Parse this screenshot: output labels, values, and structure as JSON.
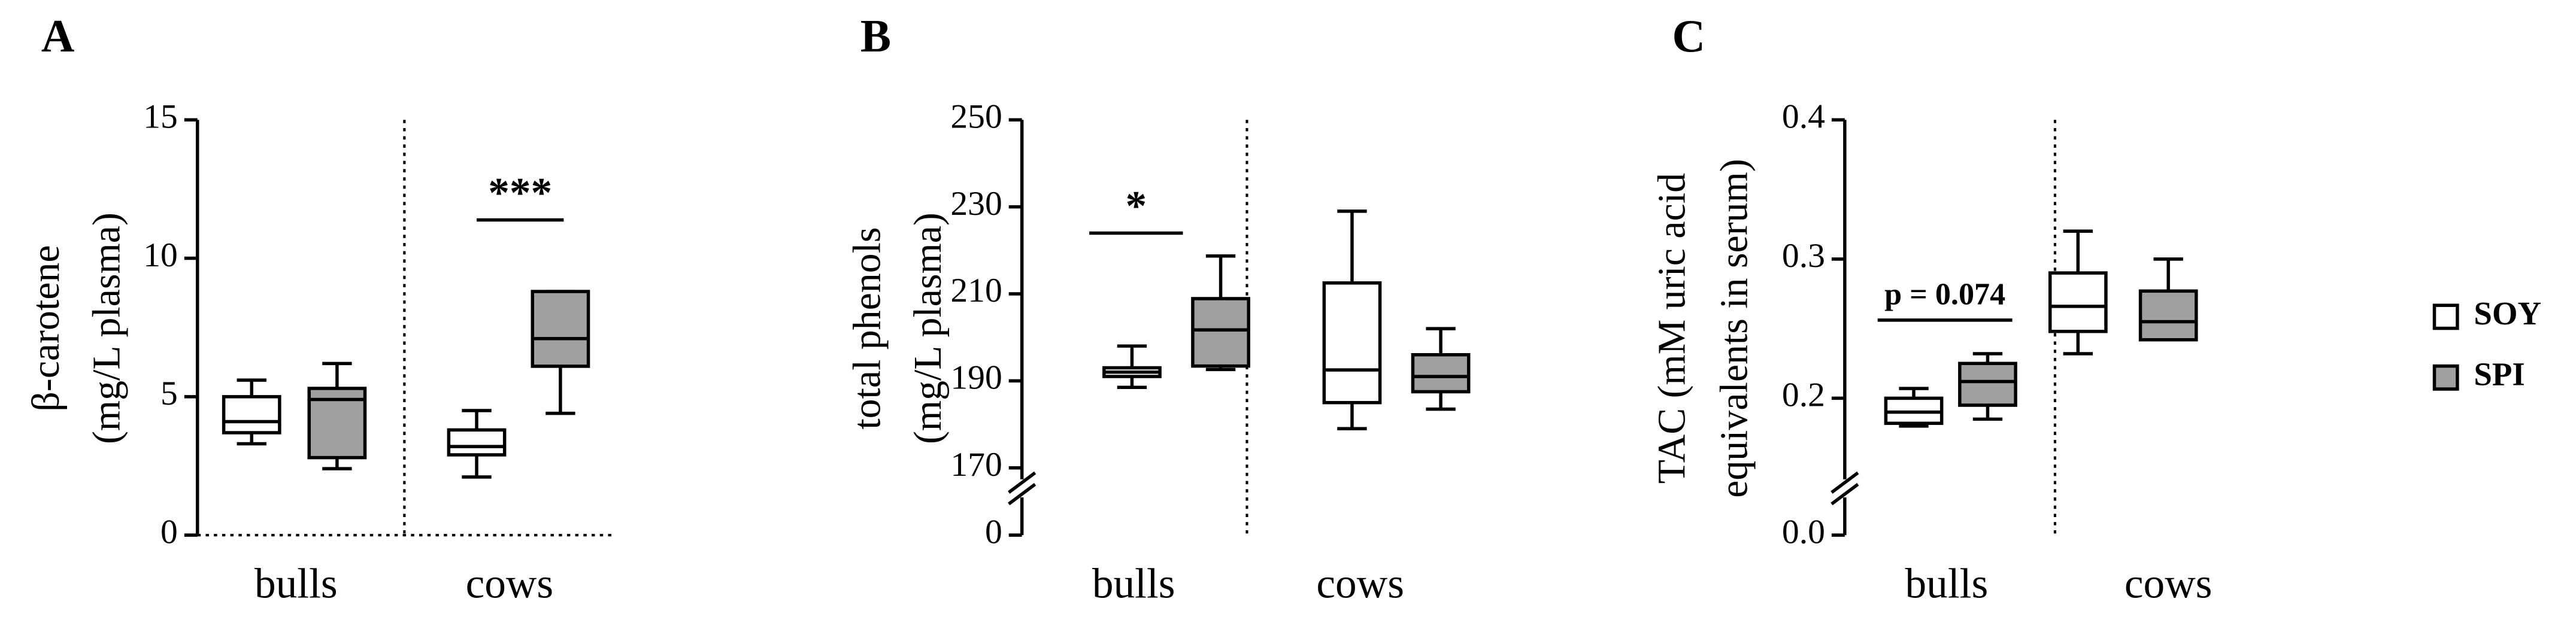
{
  "chart_data": [
    {
      "type": "box",
      "panel": "A",
      "ylabel": [
        "β-carotene",
        "(mg/L plasma)"
      ],
      "categories": [
        "bulls",
        "cows"
      ],
      "ylim": [
        0,
        15
      ],
      "yticks": [
        0,
        5,
        10,
        15
      ],
      "series": [
        {
          "color": "#ffffff",
          "values": [
            {
              "min": 3.3,
              "q1": 3.7,
              "median": 4.1,
              "q3": 5.0,
              "max": 5.6
            },
            {
              "min": 2.1,
              "q1": 2.9,
              "median": 3.2,
              "q3": 3.8,
              "max": 4.5
            }
          ]
        },
        {
          "color": "#a0a0a0",
          "values": [
            {
              "min": 2.4,
              "q1": 2.8,
              "median": 4.9,
              "q3": 5.3,
              "max": 6.2
            },
            {
              "min": 4.4,
              "q1": 6.1,
              "median": 7.1,
              "q3": 8.8,
              "max": 8.8
            }
          ]
        }
      ],
      "annotation": "***"
    },
    {
      "type": "box",
      "panel": "B",
      "ylabel": [
        "total phenols",
        "(mg/L plasma)"
      ],
      "categories": [
        "bulls",
        "cows"
      ],
      "ylim": [
        0,
        250
      ],
      "y_break": 170,
      "yticks": [
        0,
        170,
        190,
        210,
        230,
        250
      ],
      "series": [
        {
          "color": "#ffffff",
          "values": [
            {
              "min": 188.5,
              "q1": 191,
              "median": 192,
              "q3": 193,
              "max": 198
            },
            {
              "min": 179,
              "q1": 185,
              "median": 192.5,
              "q3": 212.5,
              "max": 229
            }
          ]
        },
        {
          "color": "#a0a0a0",
          "values": [
            {
              "min": 192.6,
              "q1": 193.4,
              "median": 201.7,
              "q3": 208.9,
              "max": 218.7
            },
            {
              "min": 183.5,
              "q1": 187.5,
              "median": 191,
              "q3": 196,
              "max": 202
            }
          ]
        }
      ],
      "annotation": "*"
    },
    {
      "type": "box",
      "panel": "C",
      "ylabel": [
        "TAC (mM uric acid",
        "equivalents in serum)"
      ],
      "categories": [
        "bulls",
        "cows"
      ],
      "ylim": [
        0,
        0.4
      ],
      "y_break": 0.15,
      "yticks": [
        {
          "value": 0,
          "label": "0.0"
        },
        0.2,
        0.3,
        0.4
      ],
      "series": [
        {
          "name": "SOY",
          "color": "#ffffff",
          "values": [
            {
              "min": 0.18,
              "q1": 0.182,
              "median": 0.19,
              "q3": 0.2,
              "max": 0.207
            },
            {
              "min": 0.232,
              "q1": 0.248,
              "median": 0.266,
              "q3": 0.29,
              "max": 0.32
            }
          ]
        },
        {
          "name": "SPI",
          "color": "#a0a0a0",
          "values": [
            {
              "min": 0.185,
              "q1": 0.195,
              "median": 0.212,
              "q3": 0.225,
              "max": 0.232
            },
            {
              "min": 0.242,
              "q1": 0.242,
              "median": 0.255,
              "q3": 0.277,
              "max": 0.3
            }
          ]
        }
      ],
      "annotation": "p = 0.074"
    }
  ]
}
